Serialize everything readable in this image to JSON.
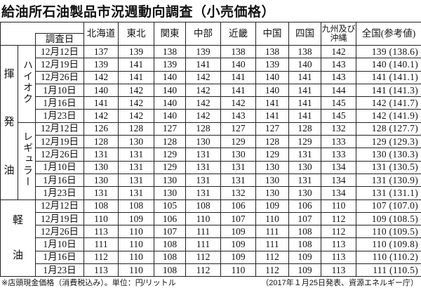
{
  "title": "給油所石油製品市況週動向調査（小売価格）",
  "header": {
    "date_label": "調査日",
    "regions": [
      "北海道",
      "東北",
      "関東",
      "中部",
      "近畿",
      "中国",
      "四国",
      "九州及び沖縄",
      "全国(参考値)"
    ]
  },
  "groups": [
    {
      "product": "揮発油",
      "subtype": "ハイオク",
      "rows": [
        {
          "date": "12月12日",
          "values": [
            "137",
            "139",
            "138",
            "139",
            "138",
            "138",
            "138",
            "142"
          ],
          "national": "139 (138.6)"
        },
        {
          "date": "12月19日",
          "values": [
            "139",
            "141",
            "139",
            "141",
            "140",
            "139",
            "140",
            "143"
          ],
          "national": "140 (140.1)"
        },
        {
          "date": "12月26日",
          "values": [
            "142",
            "141",
            "140",
            "142",
            "141",
            "140",
            "141",
            "143"
          ],
          "national": "141 (141.1)"
        },
        {
          "date": "1月10日",
          "values": [
            "140",
            "142",
            "140",
            "142",
            "141",
            "140",
            "141",
            "144"
          ],
          "national": "141 (141.3)"
        },
        {
          "date": "1月16日",
          "values": [
            "141",
            "142",
            "140",
            "142",
            "142",
            "141",
            "141",
            "145"
          ],
          "national": "142 (141.7)"
        },
        {
          "date": "1月23日",
          "values": [
            "142",
            "142",
            "140",
            "142",
            "143",
            "141",
            "141",
            "145"
          ],
          "national": "142 (141.9)"
        }
      ]
    },
    {
      "product": "揮発油",
      "subtype": "レギュラー",
      "rows": [
        {
          "date": "12月12日",
          "values": [
            "126",
            "128",
            "127",
            "128",
            "127",
            "127",
            "128",
            "132"
          ],
          "national": "128 (127.7)"
        },
        {
          "date": "12月19日",
          "values": [
            "128",
            "130",
            "128",
            "130",
            "129",
            "128",
            "129",
            "133"
          ],
          "national": "129 (129.3)"
        },
        {
          "date": "12月26日",
          "values": [
            "131",
            "131",
            "129",
            "131",
            "130",
            "129",
            "131",
            "133"
          ],
          "national": "130 (130.3)"
        },
        {
          "date": "1月10日",
          "values": [
            "130",
            "131",
            "129",
            "131",
            "131",
            "130",
            "130",
            "134"
          ],
          "national": "131 (130.5)"
        },
        {
          "date": "1月16日",
          "values": [
            "130",
            "131",
            "130",
            "131",
            "131",
            "130",
            "131",
            "134"
          ],
          "national": "131 (130.9)"
        },
        {
          "date": "1月23日",
          "values": [
            "131",
            "131",
            "130",
            "131",
            "132",
            "130",
            "130",
            "134"
          ],
          "national": "131 (131.1)"
        }
      ]
    },
    {
      "product": "軽油",
      "subtype": "",
      "rows": [
        {
          "date": "12月12日",
          "values": [
            "108",
            "108",
            "105",
            "108",
            "106",
            "109",
            "106",
            "110"
          ],
          "national": "107 (107.0)"
        },
        {
          "date": "12月19日",
          "values": [
            "110",
            "109",
            "106",
            "110",
            "107",
            "110",
            "107",
            "112"
          ],
          "national": "109 (108.5)"
        },
        {
          "date": "12月26日",
          "values": [
            "113",
            "110",
            "107",
            "111",
            "109",
            "111",
            "108",
            "112"
          ],
          "national": "110 (109.5)"
        },
        {
          "date": "1月10日",
          "values": [
            "111",
            "110",
            "108",
            "111",
            "109",
            "111",
            "108",
            "113"
          ],
          "national": "110 (109.8)"
        },
        {
          "date": "1月16日",
          "values": [
            "112",
            "110",
            "108",
            "112",
            "109",
            "112",
            "109",
            "113"
          ],
          "national": "110 (110.2)"
        },
        {
          "date": "1月23日",
          "values": [
            "113",
            "110",
            "108",
            "112",
            "110",
            "112",
            "109",
            "113"
          ],
          "national": "111 (110.5)"
        }
      ]
    }
  ],
  "labels": {
    "gasoline_chars": [
      "揮",
      "発",
      "油"
    ],
    "diesel_chars": [
      "軽",
      "油"
    ],
    "highoctane": "ハイオク",
    "regular": "レギュラー"
  },
  "footer": {
    "note": "※店頭現金価格（消費税込み）。単位：円/リットル",
    "source": "（2017年１月25日発表、資源エネルギー庁）"
  }
}
